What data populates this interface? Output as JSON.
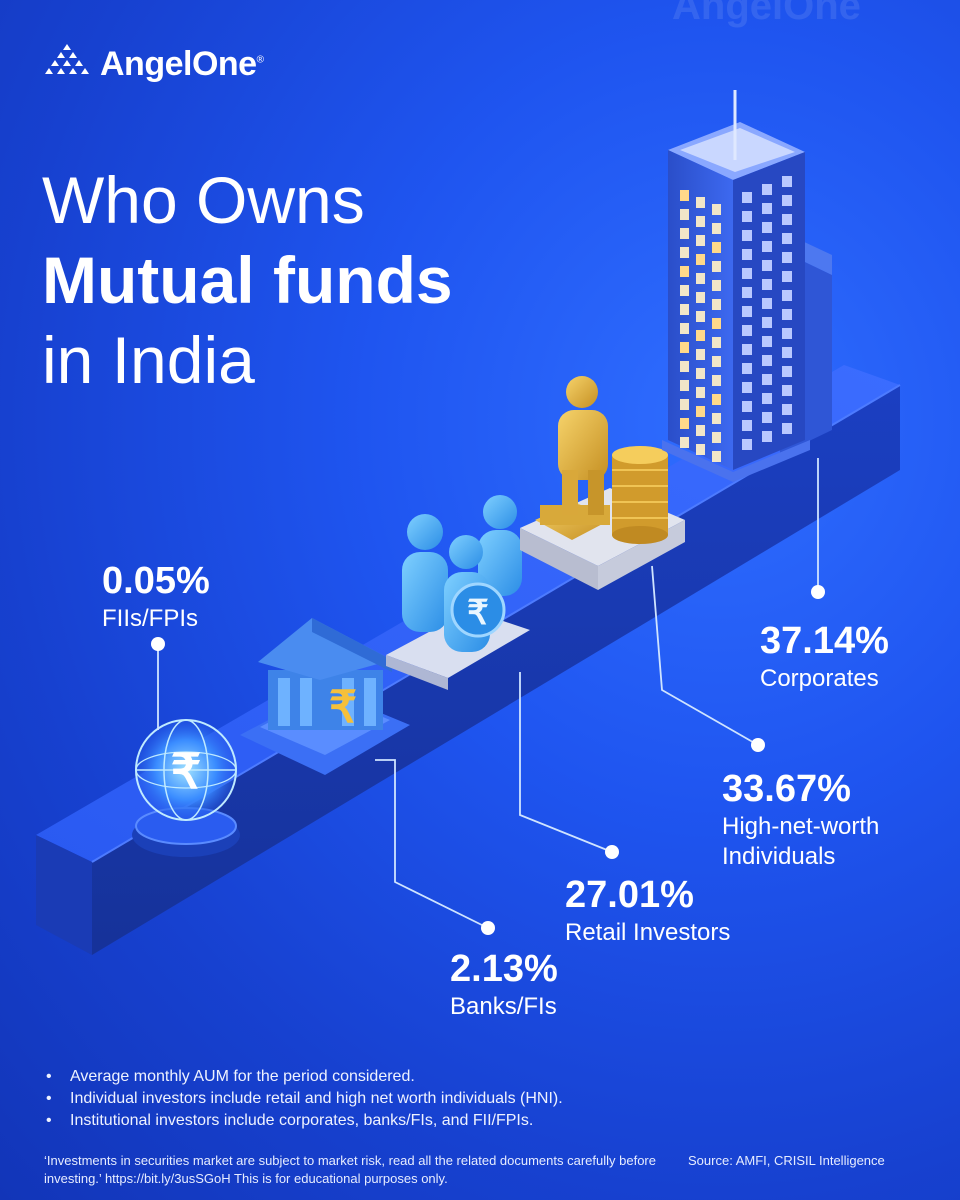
{
  "brand": {
    "name": "AngelOne",
    "registered": "®",
    "watermark": "AngelOne"
  },
  "title": {
    "line1": "Who Owns",
    "line2": "Mutual funds",
    "line3": "in India"
  },
  "stats": [
    {
      "value": "0.05%",
      "label": "FIIs/FPIs"
    },
    {
      "value": "2.13%",
      "label": "Banks/FIs"
    },
    {
      "value": "27.01%",
      "label": "Retail Investors"
    },
    {
      "value": "33.67%",
      "label_line1": "High-net-worth",
      "label_line2": "Individuals"
    },
    {
      "value": "37.14%",
      "label": "Corporates"
    }
  ],
  "notes": [
    "Average monthly AUM for the period considered.",
    "Individual investors include retail and high net worth individuals (HNI).",
    "Institutional investors include corporates, banks/FIs, and FII/FPIs."
  ],
  "disclaimer": "‘Investments in securities market are subject to market risk, read all the related documents carefully before investing.’ https://bit.ly/3usSGoH This is for educational purposes only.",
  "source": "Source: AMFI, CRISIL Intelligence",
  "icons": [
    "globe-rupee-icon",
    "bank-icon",
    "people-rupee-icon",
    "person-gold-icon",
    "skyscraper-icon"
  ],
  "colors": {
    "accent": "#1f55f0",
    "platform": "#2c5cf0",
    "text": "#ffffff"
  }
}
